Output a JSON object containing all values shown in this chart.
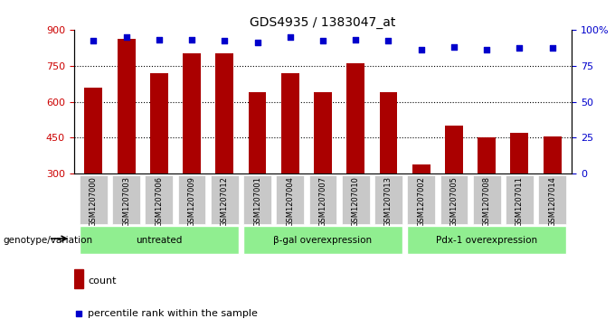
{
  "title": "GDS4935 / 1383047_at",
  "samples": [
    "GSM1207000",
    "GSM1207003",
    "GSM1207006",
    "GSM1207009",
    "GSM1207012",
    "GSM1207001",
    "GSM1207004",
    "GSM1207007",
    "GSM1207010",
    "GSM1207013",
    "GSM1207002",
    "GSM1207005",
    "GSM1207008",
    "GSM1207011",
    "GSM1207014"
  ],
  "counts": [
    660,
    860,
    720,
    800,
    800,
    640,
    720,
    640,
    760,
    640,
    340,
    500,
    450,
    470,
    455
  ],
  "percentiles": [
    92,
    95,
    93,
    93,
    92,
    91,
    95,
    92,
    93,
    92,
    86,
    88,
    86,
    87,
    87
  ],
  "bar_color": "#AA0000",
  "dot_color": "#0000CC",
  "ylim_left": [
    300,
    900
  ],
  "ylim_right": [
    0,
    100
  ],
  "yticks_left": [
    300,
    450,
    600,
    750,
    900
  ],
  "yticks_right": [
    0,
    25,
    50,
    75,
    100
  ],
  "grid_values": [
    450,
    600,
    750
  ],
  "bar_width": 0.55,
  "xlabel_color": "#CC0000",
  "ylabel_right_color": "#0000CC",
  "genotype_label": "genotype/variation",
  "legend_count": "count",
  "legend_percentile": "percentile rank within the sample",
  "group_defs": [
    [
      0,
      4,
      "untreated"
    ],
    [
      5,
      9,
      "β-gal overexpression"
    ],
    [
      10,
      14,
      "Pdx-1 overexpression"
    ]
  ],
  "group_color": "#90EE90",
  "xticklabel_bg": "#C8C8C8"
}
